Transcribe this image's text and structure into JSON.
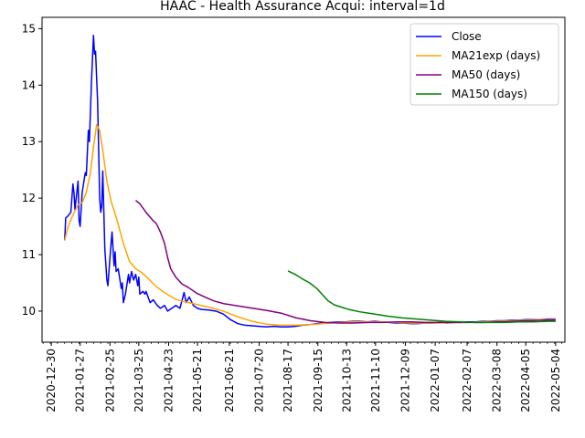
{
  "chart_data": {
    "type": "line",
    "title": "HAAC - Health Assurance Acqui: interval=1d",
    "xlabel": "",
    "ylabel": "",
    "xlim": [
      "2020-12-21",
      "2022-05-13"
    ],
    "ylim": [
      9.45,
      15.2
    ],
    "y_ticks": [
      10,
      11,
      12,
      13,
      14,
      15
    ],
    "x_ticks": [
      "2020-12-30",
      "2021-01-27",
      "2021-02-25",
      "2021-03-25",
      "2021-04-23",
      "2021-05-21",
      "2021-06-21",
      "2021-07-20",
      "2021-08-17",
      "2021-09-15",
      "2021-10-13",
      "2021-11-10",
      "2021-12-09",
      "2022-01-07",
      "2022-02-07",
      "2022-03-08",
      "2022-04-05",
      "2022-05-04"
    ],
    "grid": false,
    "legend_position": "top-right",
    "series": [
      {
        "name": "Close",
        "color": "#0000ff",
        "points": [
          [
            "2021-01-12",
            11.25
          ],
          [
            "2021-01-13",
            11.65
          ],
          [
            "2021-01-15",
            11.68
          ],
          [
            "2021-01-18",
            11.75
          ],
          [
            "2021-01-20",
            12.25
          ],
          [
            "2021-01-21",
            12.1
          ],
          [
            "2021-01-22",
            11.8
          ],
          [
            "2021-01-25",
            12.3
          ],
          [
            "2021-01-26",
            11.6
          ],
          [
            "2021-01-27",
            11.5
          ],
          [
            "2021-01-29",
            12.1
          ],
          [
            "2021-02-01",
            12.45
          ],
          [
            "2021-02-02",
            12.4
          ],
          [
            "2021-02-04",
            13.2
          ],
          [
            "2021-02-05",
            13.0
          ],
          [
            "2021-02-07",
            14.05
          ],
          [
            "2021-02-09",
            14.88
          ],
          [
            "2021-02-10",
            14.55
          ],
          [
            "2021-02-11",
            14.6
          ],
          [
            "2021-02-13",
            13.7
          ],
          [
            "2021-02-15",
            12.0
          ],
          [
            "2021-02-16",
            11.75
          ],
          [
            "2021-02-17",
            11.85
          ],
          [
            "2021-02-18",
            12.48
          ],
          [
            "2021-02-20",
            11.1
          ],
          [
            "2021-02-22",
            10.55
          ],
          [
            "2021-02-23",
            10.45
          ],
          [
            "2021-02-25",
            10.95
          ],
          [
            "2021-02-27",
            11.4
          ],
          [
            "2021-03-01",
            10.8
          ],
          [
            "2021-03-02",
            11.05
          ],
          [
            "2021-03-03",
            10.7
          ],
          [
            "2021-03-05",
            10.75
          ],
          [
            "2021-03-08",
            10.4
          ],
          [
            "2021-03-09",
            10.5
          ],
          [
            "2021-03-10",
            10.15
          ],
          [
            "2021-03-12",
            10.3
          ],
          [
            "2021-03-15",
            10.65
          ],
          [
            "2021-03-16",
            10.5
          ],
          [
            "2021-03-18",
            10.7
          ],
          [
            "2021-03-20",
            10.55
          ],
          [
            "2021-03-22",
            10.65
          ],
          [
            "2021-03-24",
            10.45
          ],
          [
            "2021-03-25",
            10.6
          ],
          [
            "2021-03-26",
            10.3
          ],
          [
            "2021-03-29",
            10.35
          ],
          [
            "2021-03-31",
            10.3
          ],
          [
            "2021-04-01",
            10.35
          ],
          [
            "2021-04-05",
            10.15
          ],
          [
            "2021-04-08",
            10.2
          ],
          [
            "2021-04-12",
            10.1
          ],
          [
            "2021-04-15",
            10.05
          ],
          [
            "2021-04-19",
            10.1
          ],
          [
            "2021-04-22",
            10.0
          ],
          [
            "2021-04-26",
            10.05
          ],
          [
            "2021-04-30",
            10.1
          ],
          [
            "2021-05-04",
            10.05
          ],
          [
            "2021-05-08",
            10.33
          ],
          [
            "2021-05-10",
            10.15
          ],
          [
            "2021-05-13",
            10.25
          ],
          [
            "2021-05-17",
            10.1
          ],
          [
            "2021-05-21",
            10.05
          ],
          [
            "2021-05-25",
            10.03
          ],
          [
            "2021-06-01",
            10.02
          ],
          [
            "2021-06-08",
            10.0
          ],
          [
            "2021-06-15",
            9.95
          ],
          [
            "2021-06-22",
            9.85
          ],
          [
            "2021-06-29",
            9.78
          ],
          [
            "2021-07-06",
            9.75
          ],
          [
            "2021-07-13",
            9.74
          ],
          [
            "2021-07-20",
            9.73
          ],
          [
            "2021-07-27",
            9.72
          ],
          [
            "2021-08-03",
            9.73
          ],
          [
            "2021-08-10",
            9.72
          ],
          [
            "2021-08-17",
            9.72
          ],
          [
            "2021-08-24",
            9.73
          ],
          [
            "2021-08-31",
            9.75
          ],
          [
            "2021-09-07",
            9.76
          ],
          [
            "2021-09-14",
            9.78
          ],
          [
            "2021-09-21",
            9.79
          ],
          [
            "2021-09-28",
            9.8
          ],
          [
            "2021-10-05",
            9.81
          ],
          [
            "2021-10-12",
            9.81
          ],
          [
            "2021-10-19",
            9.82
          ],
          [
            "2021-10-26",
            9.82
          ],
          [
            "2021-11-02",
            9.81
          ],
          [
            "2021-11-09",
            9.82
          ],
          [
            "2021-11-16",
            9.81
          ],
          [
            "2021-11-23",
            9.8
          ],
          [
            "2021-11-30",
            9.79
          ],
          [
            "2021-12-07",
            9.79
          ],
          [
            "2021-12-14",
            9.78
          ],
          [
            "2021-12-21",
            9.78
          ],
          [
            "2021-12-28",
            9.79
          ],
          [
            "2022-01-04",
            9.79
          ],
          [
            "2022-01-11",
            9.8
          ],
          [
            "2022-01-18",
            9.79
          ],
          [
            "2022-01-25",
            9.8
          ],
          [
            "2022-02-01",
            9.8
          ],
          [
            "2022-02-08",
            9.81
          ],
          [
            "2022-02-15",
            9.81
          ],
          [
            "2022-02-22",
            9.82
          ],
          [
            "2022-03-01",
            9.82
          ],
          [
            "2022-03-08",
            9.83
          ],
          [
            "2022-03-15",
            9.83
          ],
          [
            "2022-03-22",
            9.84
          ],
          [
            "2022-03-29",
            9.84
          ],
          [
            "2022-04-05",
            9.85
          ],
          [
            "2022-04-12",
            9.85
          ],
          [
            "2022-04-19",
            9.85
          ],
          [
            "2022-04-26",
            9.86
          ],
          [
            "2022-05-04",
            9.86
          ]
        ]
      },
      {
        "name": "MA21exp (days)",
        "color": "#ffa500",
        "points": [
          [
            "2021-01-12",
            11.25
          ],
          [
            "2021-01-15",
            11.48
          ],
          [
            "2021-01-20",
            11.7
          ],
          [
            "2021-01-25",
            11.88
          ],
          [
            "2021-01-29",
            11.92
          ],
          [
            "2021-02-02",
            12.1
          ],
          [
            "2021-02-06",
            12.45
          ],
          [
            "2021-02-09",
            12.9
          ],
          [
            "2021-02-12",
            13.3
          ],
          [
            "2021-02-15",
            13.2
          ],
          [
            "2021-02-18",
            12.85
          ],
          [
            "2021-02-22",
            12.3
          ],
          [
            "2021-02-26",
            11.95
          ],
          [
            "2021-03-04",
            11.6
          ],
          [
            "2021-03-10",
            11.2
          ],
          [
            "2021-03-16",
            10.88
          ],
          [
            "2021-03-22",
            10.75
          ],
          [
            "2021-03-28",
            10.68
          ],
          [
            "2021-04-03",
            10.58
          ],
          [
            "2021-04-10",
            10.45
          ],
          [
            "2021-04-17",
            10.35
          ],
          [
            "2021-04-24",
            10.27
          ],
          [
            "2021-05-01",
            10.2
          ],
          [
            "2021-05-10",
            10.16
          ],
          [
            "2021-05-20",
            10.12
          ],
          [
            "2021-06-01",
            10.07
          ],
          [
            "2021-06-15",
            10.0
          ],
          [
            "2021-06-29",
            9.9
          ],
          [
            "2021-07-13",
            9.82
          ],
          [
            "2021-07-27",
            9.77
          ],
          [
            "2021-08-10",
            9.75
          ],
          [
            "2021-08-24",
            9.75
          ],
          [
            "2021-09-07",
            9.76
          ],
          [
            "2021-09-21",
            9.78
          ],
          [
            "2021-10-05",
            9.8
          ],
          [
            "2021-10-19",
            9.81
          ],
          [
            "2021-11-02",
            9.81
          ],
          [
            "2021-11-16",
            9.81
          ],
          [
            "2021-11-30",
            9.8
          ],
          [
            "2021-12-14",
            9.79
          ],
          [
            "2021-12-28",
            9.79
          ],
          [
            "2022-01-11",
            9.79
          ],
          [
            "2022-01-25",
            9.8
          ],
          [
            "2022-02-08",
            9.8
          ],
          [
            "2022-02-22",
            9.81
          ],
          [
            "2022-03-08",
            9.82
          ],
          [
            "2022-03-22",
            9.83
          ],
          [
            "2022-04-05",
            9.84
          ],
          [
            "2022-04-19",
            9.85
          ],
          [
            "2022-05-04",
            9.85
          ]
        ]
      },
      {
        "name": "MA50 (days)",
        "color": "#800080",
        "points": [
          [
            "2021-03-22",
            11.96
          ],
          [
            "2021-03-26",
            11.9
          ],
          [
            "2021-04-01",
            11.75
          ],
          [
            "2021-04-07",
            11.62
          ],
          [
            "2021-04-11",
            11.55
          ],
          [
            "2021-04-15",
            11.4
          ],
          [
            "2021-04-19",
            11.2
          ],
          [
            "2021-04-22",
            10.95
          ],
          [
            "2021-04-25",
            10.75
          ],
          [
            "2021-04-30",
            10.6
          ],
          [
            "2021-05-06",
            10.48
          ],
          [
            "2021-05-12",
            10.42
          ],
          [
            "2021-05-20",
            10.32
          ],
          [
            "2021-05-28",
            10.25
          ],
          [
            "2021-06-06",
            10.18
          ],
          [
            "2021-06-16",
            10.13
          ],
          [
            "2021-06-30",
            10.09
          ],
          [
            "2021-07-14",
            10.05
          ],
          [
            "2021-07-28",
            10.01
          ],
          [
            "2021-08-11",
            9.96
          ],
          [
            "2021-08-25",
            9.88
          ],
          [
            "2021-09-08",
            9.83
          ],
          [
            "2021-09-22",
            9.8
          ],
          [
            "2021-10-06",
            9.79
          ],
          [
            "2021-10-20",
            9.79
          ],
          [
            "2021-11-03",
            9.8
          ],
          [
            "2021-11-17",
            9.8
          ],
          [
            "2021-12-01",
            9.81
          ],
          [
            "2021-12-15",
            9.81
          ],
          [
            "2021-12-29",
            9.8
          ],
          [
            "2022-01-12",
            9.8
          ],
          [
            "2022-01-26",
            9.8
          ],
          [
            "2022-02-09",
            9.8
          ],
          [
            "2022-02-23",
            9.8
          ],
          [
            "2022-03-09",
            9.81
          ],
          [
            "2022-03-23",
            9.82
          ],
          [
            "2022-04-06",
            9.83
          ],
          [
            "2022-04-20",
            9.84
          ],
          [
            "2022-05-04",
            9.84
          ]
        ]
      },
      {
        "name": "MA150 (days)",
        "color": "#008000",
        "points": [
          [
            "2021-08-17",
            10.71
          ],
          [
            "2021-08-24",
            10.65
          ],
          [
            "2021-08-31",
            10.57
          ],
          [
            "2021-09-07",
            10.5
          ],
          [
            "2021-09-14",
            10.4
          ],
          [
            "2021-09-20",
            10.28
          ],
          [
            "2021-09-25",
            10.18
          ],
          [
            "2021-10-01",
            10.11
          ],
          [
            "2021-10-08",
            10.07
          ],
          [
            "2021-10-15",
            10.03
          ],
          [
            "2021-10-25",
            9.99
          ],
          [
            "2021-11-08",
            9.95
          ],
          [
            "2021-11-22",
            9.91
          ],
          [
            "2021-12-06",
            9.88
          ],
          [
            "2021-12-20",
            9.86
          ],
          [
            "2022-01-03",
            9.84
          ],
          [
            "2022-01-17",
            9.82
          ],
          [
            "2022-01-31",
            9.81
          ],
          [
            "2022-02-14",
            9.8
          ],
          [
            "2022-03-01",
            9.8
          ],
          [
            "2022-03-15",
            9.8
          ],
          [
            "2022-03-29",
            9.81
          ],
          [
            "2022-04-12",
            9.81
          ],
          [
            "2022-04-26",
            9.82
          ],
          [
            "2022-05-04",
            9.82
          ]
        ]
      }
    ]
  }
}
